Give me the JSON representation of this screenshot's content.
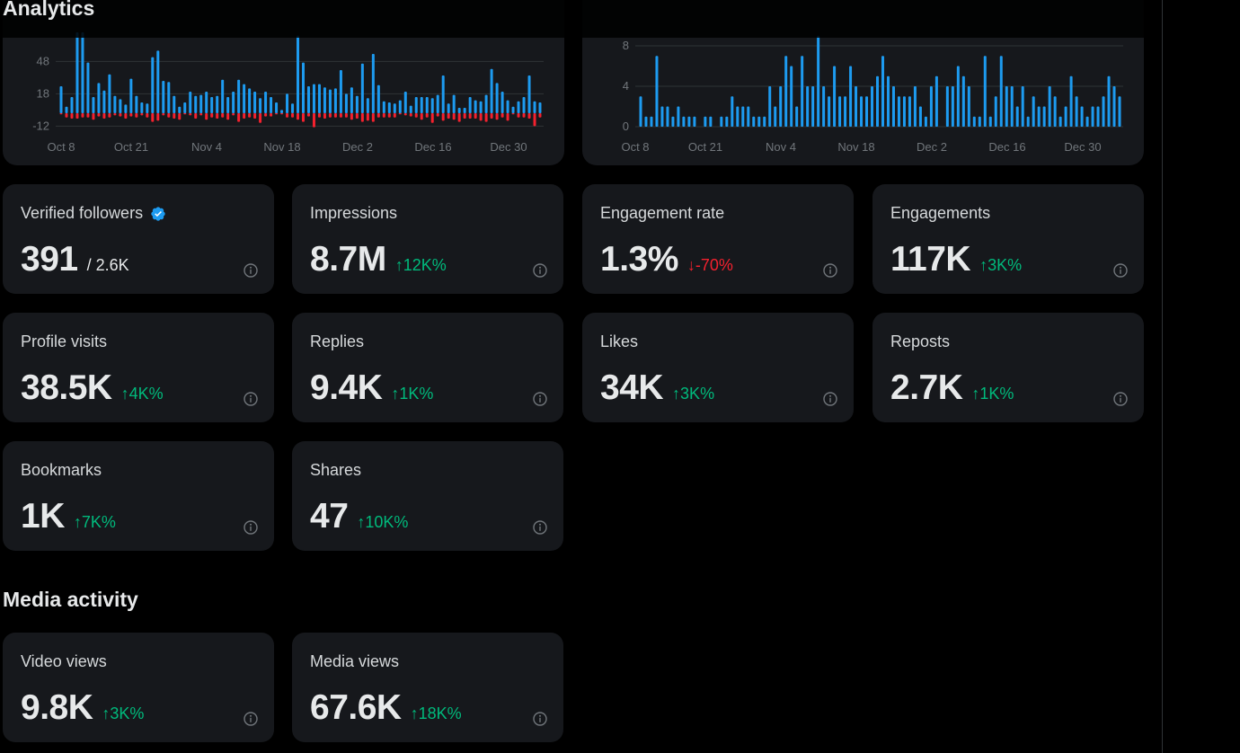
{
  "header": {
    "title": "Analytics"
  },
  "colors": {
    "accent": "#1d9bf0",
    "negative": "#f4212e",
    "positive": "#00ba7c",
    "card_bg": "#16181c",
    "grid": "#2f3336",
    "tick": "#71767b"
  },
  "chart_data": [
    {
      "type": "bar",
      "title": "",
      "xlabel": "",
      "ylabel": "",
      "ylim": [
        -14,
        70
      ],
      "yticks": [
        "48",
        "18",
        "-12"
      ],
      "ytick_values": [
        48,
        18,
        -12
      ],
      "xtick_labels": [
        "Oct 8",
        "Oct 21",
        "Nov 4",
        "Nov 18",
        "Dec 2",
        "Dec 16",
        "Dec 30"
      ],
      "grid": true,
      "series": [
        {
          "name": "positive",
          "color": "#1d9bf0",
          "values": [
            25,
            6,
            15,
            75,
            75,
            47,
            15,
            28,
            21,
            36,
            16,
            13,
            8,
            32,
            16,
            10,
            9,
            52,
            58,
            30,
            29,
            16,
            6,
            10,
            20,
            16,
            17,
            20,
            15,
            16,
            31,
            15,
            20,
            31,
            27,
            23,
            20,
            14,
            20,
            15,
            10,
            3,
            18,
            9,
            72,
            47,
            25,
            27,
            27,
            24,
            22,
            23,
            40,
            18,
            24,
            16,
            46,
            14,
            55,
            26,
            11,
            10,
            9,
            12,
            20,
            7,
            15,
            15,
            15,
            14,
            17,
            35,
            9,
            17,
            5,
            5,
            15,
            12,
            11,
            17,
            41,
            28,
            20,
            12,
            6,
            11,
            15,
            35,
            11,
            10
          ]
        },
        {
          "name": "negative",
          "color": "#f4212e",
          "values": [
            -1,
            -4,
            -5,
            -5,
            -4,
            -4,
            -6,
            -3,
            -5,
            -4,
            -2,
            -3,
            -5,
            -3,
            -4,
            -2,
            -4,
            -8,
            -7,
            -2,
            -4,
            -5,
            -6,
            -1,
            -2,
            -5,
            -2,
            -6,
            -4,
            -5,
            -4,
            -6,
            -2,
            -8,
            -5,
            -4,
            -5,
            -9,
            -3,
            -3,
            -1,
            -1,
            -4,
            -4,
            -6,
            -8,
            -3,
            -13,
            -4,
            -5,
            -4,
            -4,
            -4,
            -4,
            -6,
            -5,
            -8,
            -7,
            -8,
            -4,
            -4,
            -4,
            -4,
            -1,
            -2,
            -3,
            -4,
            -6,
            -4,
            -9,
            -3,
            -7,
            -5,
            -6,
            -8,
            -5,
            -5,
            -5,
            -7,
            -8,
            -5,
            -6,
            -4,
            -7,
            -1,
            -4,
            -4,
            -5,
            -12,
            -4
          ]
        }
      ]
    },
    {
      "type": "bar",
      "title": "",
      "xlabel": "",
      "ylabel": "",
      "ylim": [
        0,
        9
      ],
      "yticks": [
        "8",
        "4",
        "0"
      ],
      "ytick_values": [
        8,
        4,
        0
      ],
      "xtick_labels": [
        "Oct 8",
        "Oct 21",
        "Nov 4",
        "Nov 18",
        "Dec 2",
        "Dec 16",
        "Dec 30"
      ],
      "grid": true,
      "series": [
        {
          "name": "posts",
          "color": "#1d9bf0",
          "values": [
            3,
            1,
            1,
            7,
            2,
            2,
            1,
            2,
            1,
            1,
            1,
            0,
            1,
            1,
            0,
            1,
            1,
            3,
            2,
            2,
            2,
            1,
            1,
            1,
            4,
            2,
            4,
            7,
            6,
            2,
            7,
            4,
            4,
            9,
            4,
            3,
            6,
            3,
            3,
            6,
            4,
            3,
            3,
            4,
            5,
            7,
            5,
            4,
            3,
            3,
            3,
            4,
            2,
            1,
            4,
            5,
            0,
            4,
            4,
            6,
            5,
            4,
            1,
            1,
            7,
            1,
            3,
            7,
            4,
            4,
            2,
            4,
            1,
            3,
            2,
            2,
            4,
            3,
            1,
            2,
            5,
            3,
            2,
            1,
            2,
            2,
            3,
            5,
            4,
            3
          ]
        }
      ]
    }
  ],
  "metrics": [
    {
      "label": "Verified followers",
      "value": "391",
      "sub": "/ 2.6K",
      "verified": true
    },
    {
      "label": "Impressions",
      "value": "8.7M",
      "delta": "12K%",
      "direction": "up"
    },
    {
      "label": "Engagement rate",
      "value": "1.3%",
      "delta": "-70%",
      "direction": "down"
    },
    {
      "label": "Engagements",
      "value": "117K",
      "delta": "3K%",
      "direction": "up"
    },
    {
      "label": "Profile visits",
      "value": "38.5K",
      "delta": "4K%",
      "direction": "up"
    },
    {
      "label": "Replies",
      "value": "9.4K",
      "delta": "1K%",
      "direction": "up"
    },
    {
      "label": "Likes",
      "value": "34K",
      "delta": "3K%",
      "direction": "up"
    },
    {
      "label": "Reposts",
      "value": "2.7K",
      "delta": "1K%",
      "direction": "up"
    },
    {
      "label": "Bookmarks",
      "value": "1K",
      "delta": "7K%",
      "direction": "up"
    },
    {
      "label": "Shares",
      "value": "47",
      "delta": "10K%",
      "direction": "up"
    }
  ],
  "media_section": {
    "title": "Media activity",
    "metrics": [
      {
        "label": "Video views",
        "value": "9.8K",
        "delta": "3K%",
        "direction": "up"
      },
      {
        "label": "Media views",
        "value": "67.6K",
        "delta": "18K%",
        "direction": "up"
      }
    ]
  },
  "icons": {
    "info": "info-circle",
    "verified": "verified-badge",
    "arrow_up": "↑",
    "arrow_down": "↓"
  }
}
